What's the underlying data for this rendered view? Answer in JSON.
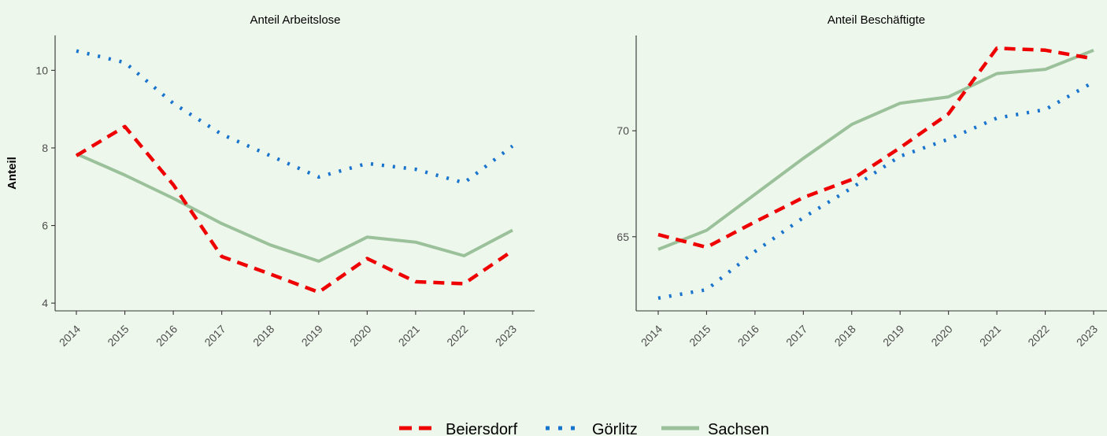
{
  "colors": {
    "background": "#eef7ec",
    "axis": "#333333",
    "tick_label": "#4d4d4d",
    "Beiersdorf": "#ee0000",
    "Görlitz": "#1874cd",
    "Sachsen": "#9bc19b"
  },
  "legend": {
    "placement": "bottom",
    "items": [
      {
        "name": "Beiersdorf",
        "style": "dashed"
      },
      {
        "name": "Görlitz",
        "style": "dotted"
      },
      {
        "name": "Sachsen",
        "style": "solid"
      }
    ]
  },
  "chart_data": [
    {
      "type": "line",
      "title": "Anteil Arbeitslose",
      "ylabel": "Anteil",
      "xlabel": "",
      "x": [
        "2014",
        "2015",
        "2016",
        "2017",
        "2018",
        "2019",
        "2020",
        "2021",
        "2022",
        "2023"
      ],
      "ylim": [
        3.8,
        10.9
      ],
      "yticks": [
        4,
        6,
        8,
        10
      ],
      "grid": false,
      "series": [
        {
          "name": "Beiersdorf",
          "values": [
            7.8,
            8.55,
            7.05,
            5.2,
            4.75,
            4.28,
            5.15,
            4.55,
            4.5,
            5.35
          ]
        },
        {
          "name": "Görlitz",
          "values": [
            10.5,
            10.2,
            9.15,
            8.35,
            7.8,
            7.25,
            7.6,
            7.45,
            7.1,
            8.05
          ]
        },
        {
          "name": "Sachsen",
          "values": [
            7.85,
            7.3,
            6.7,
            6.05,
            5.5,
            5.08,
            5.7,
            5.57,
            5.22,
            5.88
          ]
        }
      ]
    },
    {
      "type": "line",
      "title": "Anteil Beschäftigte",
      "ylabel": "",
      "xlabel": "",
      "x": [
        "2014",
        "2015",
        "2016",
        "2017",
        "2018",
        "2019",
        "2020",
        "2021",
        "2022",
        "2023"
      ],
      "ylim": [
        61.5,
        74.5
      ],
      "yticks": [
        65,
        70
      ],
      "grid": false,
      "series": [
        {
          "name": "Beiersdorf",
          "values": [
            65.1,
            64.5,
            65.7,
            66.85,
            67.7,
            69.2,
            70.8,
            73.9,
            73.8,
            73.4
          ]
        },
        {
          "name": "Görlitz",
          "values": [
            62.1,
            62.5,
            64.3,
            65.9,
            67.3,
            68.8,
            69.6,
            70.6,
            71.0,
            72.3
          ]
        },
        {
          "name": "Sachsen",
          "values": [
            64.4,
            65.3,
            67.0,
            68.7,
            70.3,
            71.3,
            71.6,
            72.7,
            72.9,
            73.8
          ]
        }
      ]
    }
  ]
}
